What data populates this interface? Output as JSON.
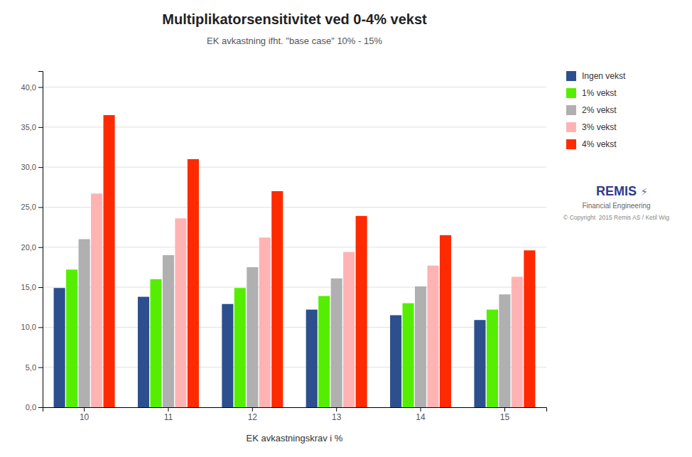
{
  "chart_data": {
    "type": "bar",
    "title": "Multiplikatorsensitivitet ved 0-4% vekst",
    "subtitle": "EK avkastning ifht. \"base case\" 10% - 15%",
    "x_label": "EK avkastningskrav i %",
    "categories": [
      10,
      11,
      12,
      13,
      14,
      15
    ],
    "series": [
      {
        "name": "Ingen vekst",
        "color": "#2d4f8e",
        "values": [
          14.9,
          13.8,
          12.9,
          12.2,
          11.5,
          10.9
        ]
      },
      {
        "name": "1% vekst",
        "color": "#55ee00",
        "values": [
          17.2,
          16.0,
          14.9,
          13.9,
          13.0,
          12.2
        ]
      },
      {
        "name": "2% vekst",
        "color": "#b0b0b0",
        "values": [
          21.0,
          19.0,
          17.5,
          16.1,
          15.1,
          14.1
        ]
      },
      {
        "name": "3% vekst",
        "color": "#ffb3b3",
        "values": [
          26.7,
          23.6,
          21.2,
          19.4,
          17.7,
          16.3
        ]
      },
      {
        "name": "4% vekst",
        "color": "#ff2a00",
        "values": [
          36.5,
          31.0,
          27.0,
          23.9,
          21.5,
          19.6
        ]
      }
    ],
    "ylim": [
      0,
      42
    ],
    "yticks": [
      {
        "value": 0,
        "label": "0,0"
      },
      {
        "value": 5,
        "label": "5,0"
      },
      {
        "value": 10,
        "label": "10,0"
      },
      {
        "value": 15,
        "label": "15,0"
      },
      {
        "value": 20,
        "label": "20,0"
      },
      {
        "value": 25,
        "label": "25,0"
      },
      {
        "value": 30,
        "label": "30,0"
      },
      {
        "value": 35,
        "label": "35,0"
      },
      {
        "value": 40,
        "label": "40,0"
      }
    ],
    "grid": true,
    "legend": "top-right",
    "annotations": [
      "REMIS",
      "⚡",
      "Financial Engineering",
      "© Copyright  2015 Remis AS / Ketil Wig"
    ]
  }
}
